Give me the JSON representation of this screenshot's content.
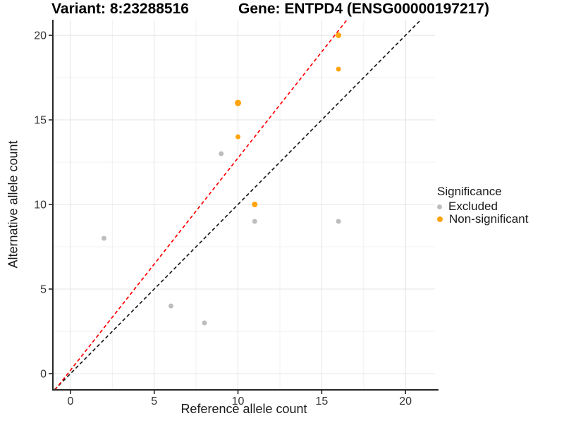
{
  "figure": {
    "title_left": "Variant: 8:23288516",
    "title_right": "Gene: ENTPD4 (ENSG00000197217)",
    "background": "#ffffff"
  },
  "chart_data": {
    "type": "scatter",
    "x": {
      "label": "Reference allele count",
      "ticks": [
        0,
        5,
        10,
        15,
        20
      ],
      "tick_labels": [
        "0",
        "5",
        "10",
        "15",
        "20"
      ],
      "minor_ticks": [
        2.5,
        7.5,
        12.5,
        17.5
      ],
      "range": [
        -1.05,
        21.76
      ]
    },
    "y": {
      "label": "Alternative allele count",
      "ticks": [
        0,
        5,
        10,
        15,
        20
      ],
      "tick_labels": [
        "0",
        "5",
        "10",
        "15",
        "20"
      ],
      "minor_ticks": [
        2.5,
        7.5,
        12.5,
        17.5
      ],
      "range": [
        -0.96,
        20.92
      ]
    },
    "grid": {
      "major_color": "#e4e4e4",
      "minor_color": "#f1f1f1",
      "axis_color": "#262626",
      "tick_label_color": "#333333"
    },
    "series": [
      {
        "name": "Excluded",
        "color": "#bdbdbd",
        "points": [
          {
            "x": 2,
            "y": 8,
            "r": 3.5
          },
          {
            "x": 6,
            "y": 4,
            "r": 3.5
          },
          {
            "x": 8,
            "y": 3,
            "r": 3.5
          },
          {
            "x": 9,
            "y": 13,
            "r": 3.5
          },
          {
            "x": 11,
            "y": 9,
            "r": 3.5
          },
          {
            "x": 16,
            "y": 9,
            "r": 3.5
          }
        ]
      },
      {
        "name": "Non-significant",
        "color": "#ffa40e",
        "points": [
          {
            "x": 10,
            "y": 14,
            "r": 3.5
          },
          {
            "x": 10,
            "y": 16,
            "r": 4.5
          },
          {
            "x": 11,
            "y": 10,
            "r": 4.0
          },
          {
            "x": 16,
            "y": 18,
            "r": 3.5
          },
          {
            "x": 16,
            "y": 20,
            "r": 4.0
          }
        ]
      }
    ],
    "lines": [
      {
        "name": "identity-line",
        "slope": 1.0,
        "intercept": 0.0,
        "color": "#1a1a1a",
        "dash": "5 3.6",
        "width": 1.7
      },
      {
        "name": "fitted-ratio-line",
        "slope": 1.255,
        "intercept": 0.2,
        "color": "#ff0000",
        "dash": "5 3.6",
        "width": 1.7
      }
    ],
    "legend": {
      "title": "Significance",
      "items": [
        {
          "label": "Excluded",
          "color": "#bdbdbd",
          "r": 3.5
        },
        {
          "label": "Non-significant",
          "color": "#ffa40e",
          "r": 4
        }
      ]
    }
  }
}
